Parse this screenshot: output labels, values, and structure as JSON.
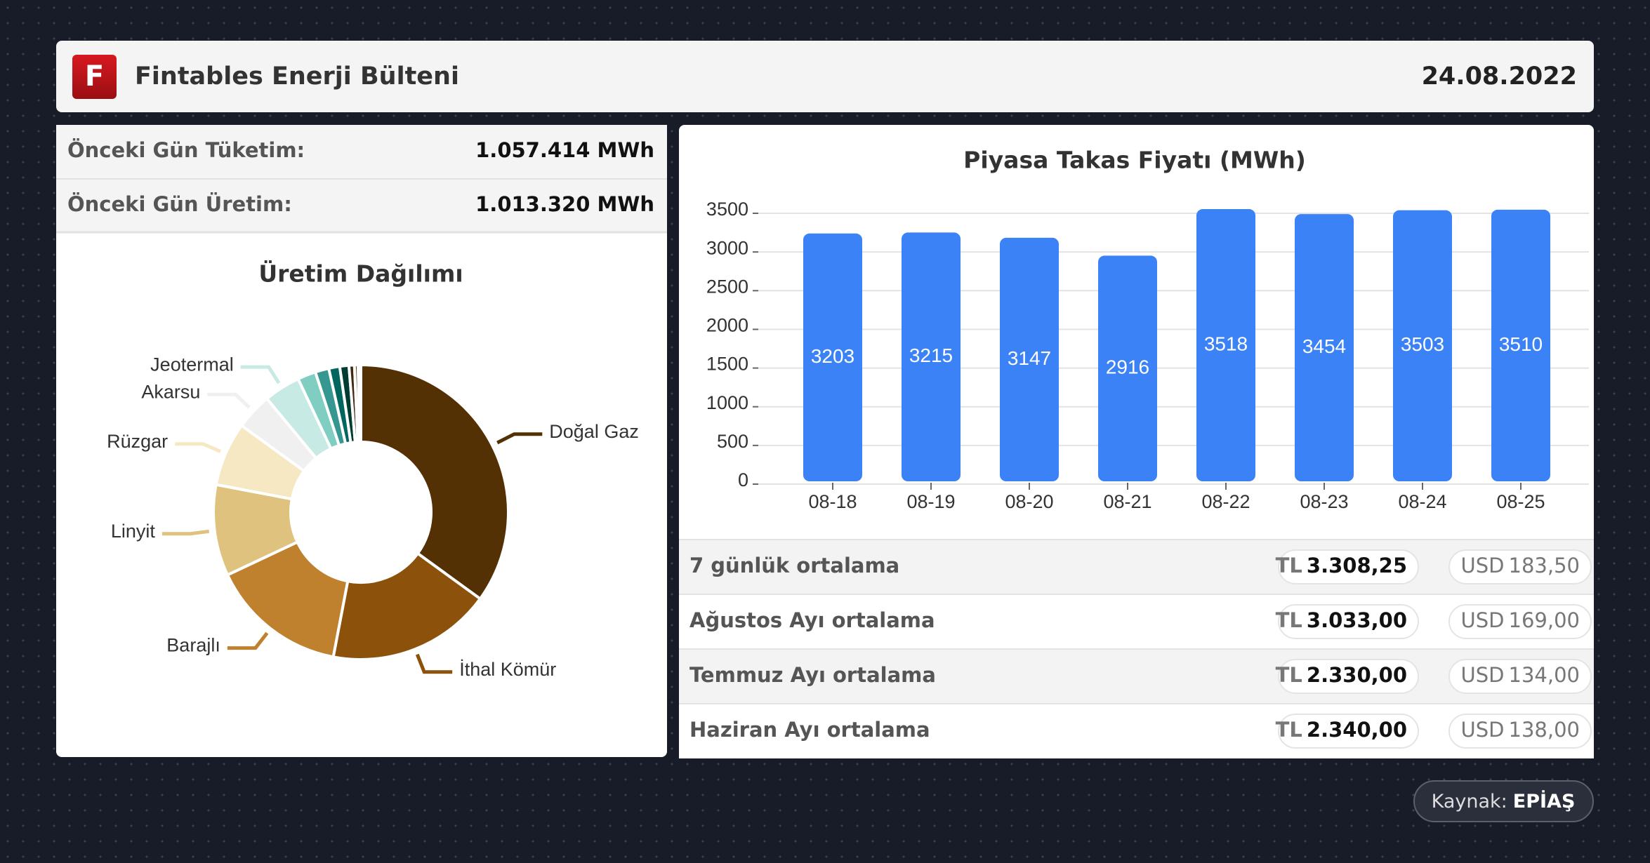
{
  "header": {
    "logo": "F",
    "title": "Fintables Enerji Bülteni",
    "date": "24.08.2022"
  },
  "stats": [
    {
      "label": "Önceki Gün Tüketim:",
      "value": "1.057.414 MWh"
    },
    {
      "label": "Önceki Gün Üretim:",
      "value": "1.013.320 MWh"
    }
  ],
  "chart_data": [
    {
      "type": "donut",
      "title": "Üretim Dağılımı",
      "categories": [
        "Doğal Gaz",
        "İthal Kömür",
        "Barajlı",
        "Linyit",
        "Rüzgar",
        "Akarsu",
        "Jeotermal",
        null,
        null,
        null,
        null,
        null,
        null,
        null,
        null
      ],
      "values": [
        35,
        18,
        15,
        10,
        7,
        4,
        4,
        2,
        1.5,
        1.2,
        1,
        0.6,
        0.4,
        0.2,
        0.1
      ],
      "colors": [
        "#543005",
        "#8c510a",
        "#bf812d",
        "#dfc27d",
        "#f6e8c3",
        "#f0f0f0",
        "#c7eae5",
        "#80cdc1",
        "#35978f",
        "#01665e",
        "#003c30",
        "#3d2a10",
        "#6b4a1f",
        "#a07a45",
        "#d8c3a0"
      ]
    },
    {
      "type": "bar",
      "title": "Piyasa Takas Fiyatı (MWh)",
      "categories": [
        "08-18",
        "08-19",
        "08-20",
        "08-21",
        "08-22",
        "08-23",
        "08-24",
        "08-25"
      ],
      "values": [
        3203,
        3215,
        3147,
        2916,
        3518,
        3454,
        3503,
        3510
      ],
      "color": "#3b82f6",
      "ylim": [
        0,
        3500
      ],
      "yticks": [
        0,
        500,
        1000,
        1500,
        2000,
        2500,
        3000,
        3500
      ],
      "grid": true
    }
  ],
  "averages": {
    "currencies": [
      "TL",
      "USD"
    ],
    "rows": [
      {
        "label": "7 günlük ortalama",
        "tl": "3.308,25",
        "usd": "183,50"
      },
      {
        "label": "Ağustos Ayı ortalama",
        "tl": "3.033,00",
        "usd": "169,00"
      },
      {
        "label": "Temmuz Ayı ortalama",
        "tl": "2.330,00",
        "usd": "134,00"
      },
      {
        "label": "Haziran Ayı ortalama",
        "tl": "2.340,00",
        "usd": "138,00"
      }
    ]
  },
  "source": {
    "label": "Kaynak:",
    "name": "EPİAŞ"
  }
}
